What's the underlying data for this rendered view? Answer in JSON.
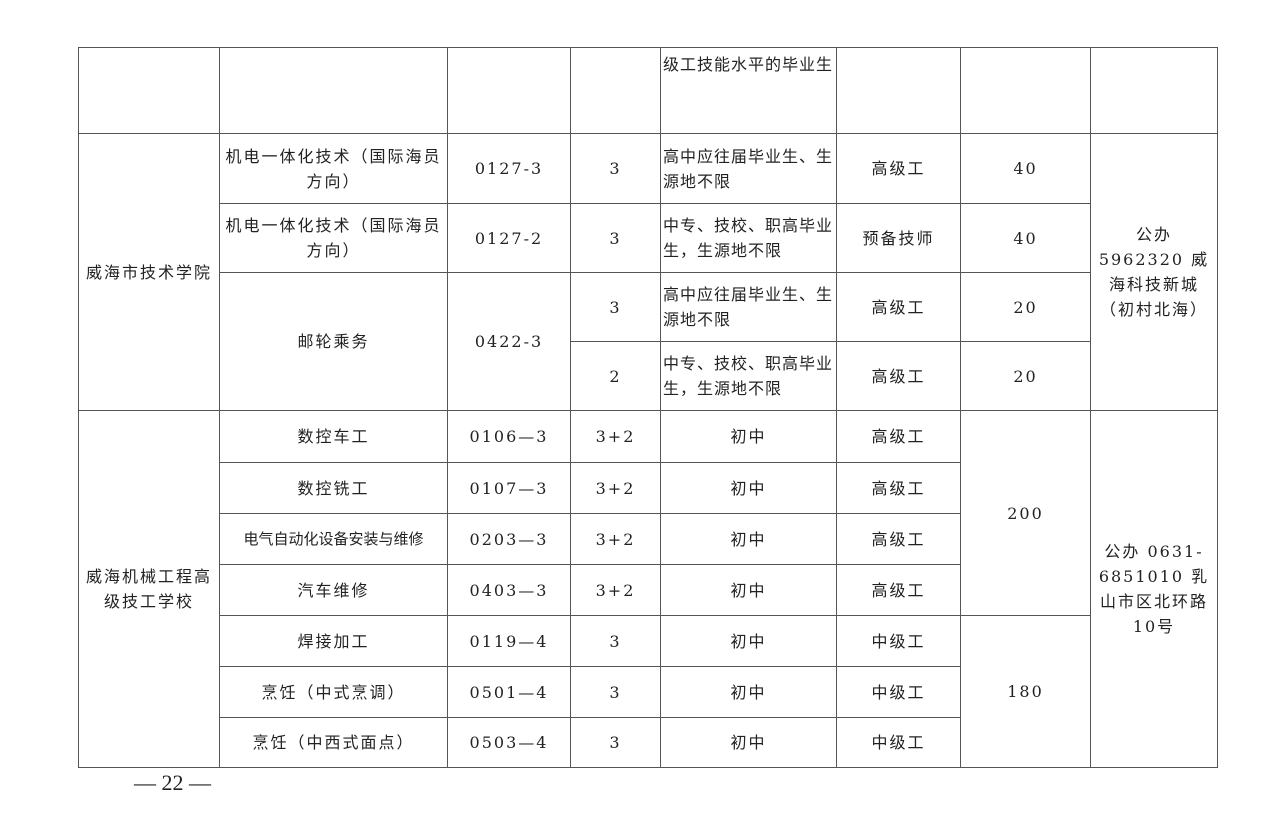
{
  "table": {
    "row0_requirement": "级工技能水平的毕业生",
    "school1": {
      "name": "威海市技术学院",
      "contact": "公办 5962320 威海科技新城（初村北海）",
      "rows": [
        {
          "major": "机电一体化技术（国际海员方向）",
          "code": "0127-3",
          "years": "3",
          "requirement": "高中应往届毕业生、生源地不限",
          "level": "高级工",
          "count": "40"
        },
        {
          "major": "机电一体化技术（国际海员方向）",
          "code": "0127-2",
          "years": "3",
          "requirement": "中专、技校、职高毕业生，生源地不限",
          "level": "预备技师",
          "count": "40"
        },
        {
          "major": "邮轮乘务",
          "code": "0422-3",
          "years": "3",
          "requirement": "高中应往届毕业生、生源地不限",
          "level": "高级工",
          "count": "20"
        },
        {
          "years": "2",
          "requirement": "中专、技校、职高毕业生，生源地不限",
          "level": "高级工",
          "count": "20"
        }
      ]
    },
    "school2": {
      "name": "威海机械工程高级技工学校",
      "contact": "公办 0631-6851010 乳山市区北环路10号",
      "count_a": "200",
      "count_b": "180",
      "rows": [
        {
          "major": "数控车工",
          "code": "0106—3",
          "years": "3+2",
          "requirement": "初中",
          "level": "高级工"
        },
        {
          "major": "数控铣工",
          "code": "0107—3",
          "years": "3+2",
          "requirement": "初中",
          "level": "高级工"
        },
        {
          "major": "电气自动化设备安装与维修",
          "code": "0203—3",
          "years": "3+2",
          "requirement": "初中",
          "level": "高级工"
        },
        {
          "major": "汽车维修",
          "code": "0403—3",
          "years": "3+2",
          "requirement": "初中",
          "level": "高级工"
        },
        {
          "major": "焊接加工",
          "code": "0119—4",
          "years": "3",
          "requirement": "初中",
          "level": "中级工"
        },
        {
          "major": "烹饪（中式烹调）",
          "code": "0501—4",
          "years": "3",
          "requirement": "初中",
          "level": "中级工"
        },
        {
          "major": "烹饪（中西式面点）",
          "code": "0503—4",
          "years": "3",
          "requirement": "初中",
          "level": "中级工"
        }
      ]
    }
  },
  "footer": {
    "page_number": "— 22 —"
  }
}
